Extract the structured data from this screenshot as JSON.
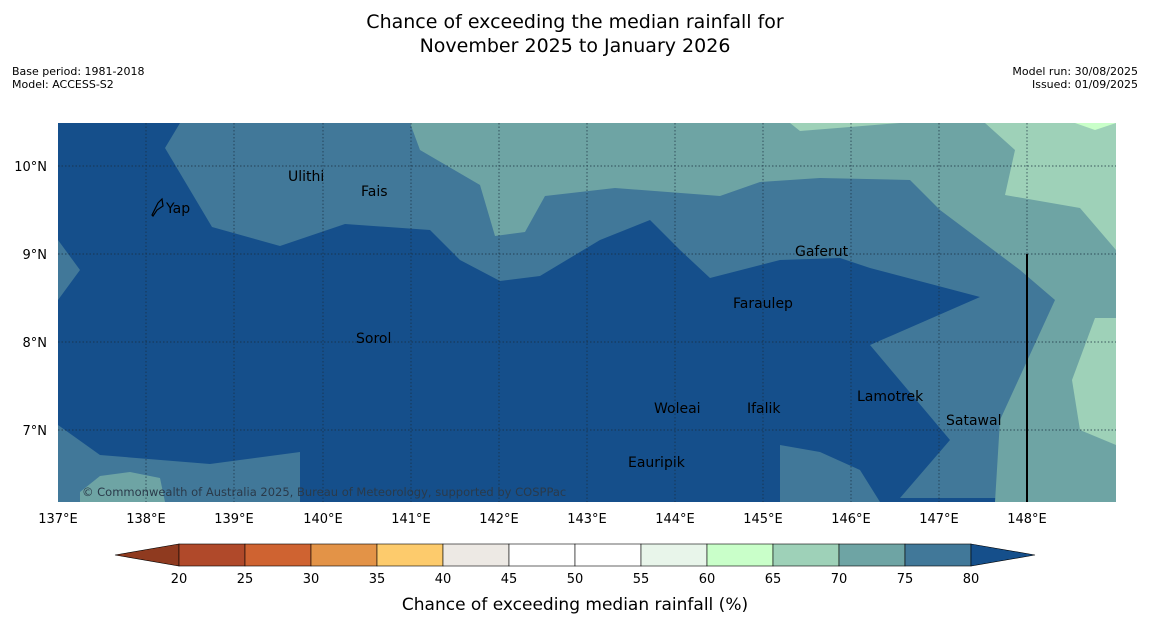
{
  "title": {
    "line1": "Chance of exceeding the median rainfall for",
    "line2": "November 2025 to January 2026"
  },
  "meta": {
    "base_period": "Base period: 1981-2018",
    "model": "Model: ACCESS-S2",
    "model_run": "Model run: 30/08/2025",
    "issued": "Issued: 01/09/2025"
  },
  "map": {
    "lon_labels": [
      "137°E",
      "138°E",
      "139°E",
      "140°E",
      "141°E",
      "142°E",
      "143°E",
      "144°E",
      "145°E",
      "146°E",
      "147°E",
      "148°E"
    ],
    "lat_labels": [
      "10°N",
      "9°N",
      "8°N",
      "7°N"
    ],
    "places": [
      "Yap",
      "Ulithi",
      "Fais",
      "Sorol",
      "Gaferut",
      "Faraulep",
      "Woleai",
      "Ifalik",
      "Lamotrek",
      "Satawal",
      "Eauripik"
    ],
    "copyright": "© Commonwealth of Australia 2025, Bureau of Meteorology, supported by COSPPac"
  },
  "colorbar": {
    "label": "Chance of exceeding median rainfall (%)",
    "ticks": [
      "20",
      "25",
      "30",
      "35",
      "40",
      "45",
      "50",
      "55",
      "60",
      "65",
      "70",
      "75",
      "80"
    ],
    "colors": {
      "lt20": "#8f3a1f",
      "c20_25": "#b0492a",
      "c25_30": "#cf6331",
      "c30_35": "#e39347",
      "c35_40": "#fdcb6c",
      "c40_45": "#ede9e4",
      "c45_50": "#ffffff",
      "c50_55": "#ffffff",
      "c55_60": "#e8f5ea",
      "c60_65": "#c9ffc9",
      "c65_70": "#9ed1b8",
      "c70_75": "#6ea4a4",
      "c75_80": "#417899",
      "gt80": "#154f8b"
    }
  }
}
